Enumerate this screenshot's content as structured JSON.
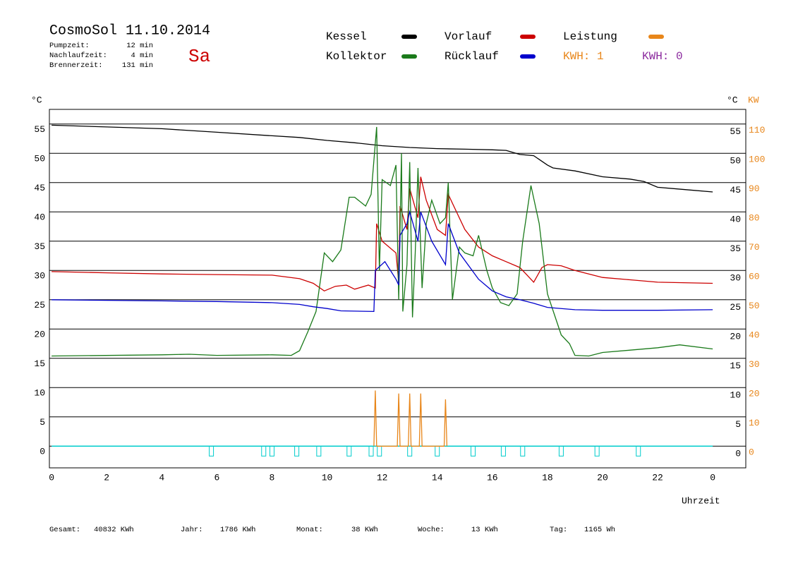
{
  "header": {
    "title": "CosmoSol 11.10.2014",
    "weekday": "Sa",
    "stats": [
      {
        "label": "Pumpzeit:",
        "value": "12 min"
      },
      {
        "label": "Nachlaufzeit:",
        "value": "4 min"
      },
      {
        "label": "Brennerzeit:",
        "value": "131 min"
      }
    ],
    "kwh": [
      {
        "text": "KWH: 1",
        "color": "#e8861a"
      },
      {
        "text": "KWH: 0",
        "color": "#8b2a9e"
      }
    ]
  },
  "footer": [
    {
      "label": "Gesamt:",
      "value": "40832 KWh"
    },
    {
      "label": "Jahr:",
      "value": "1786 KWh"
    },
    {
      "label": "Monat:",
      "value": "38 KWh"
    },
    {
      "label": "Woche:",
      "value": "13 KWh"
    },
    {
      "label": "Tag:",
      "value": "1165 Wh"
    }
  ],
  "chart_data": {
    "type": "line",
    "y_label": "°C",
    "y2_label": "°C",
    "y2_unit": "KW",
    "x_label": "Uhrzeit",
    "xlim": [
      -0.08,
      25.2
    ],
    "xticks": [
      0,
      2,
      4,
      6,
      8,
      10,
      12,
      14,
      16,
      18,
      20,
      22,
      {
        "value": 24,
        "label": "0"
      }
    ],
    "ylim": [
      -3.7,
      57.5
    ],
    "yticks": [
      0,
      5,
      10,
      15,
      20,
      25,
      30,
      35,
      40,
      45,
      50,
      55
    ],
    "y2lim": [
      -7.4,
      115
    ],
    "y2ticks": [
      0,
      10,
      20,
      30,
      40,
      50,
      60,
      70,
      80,
      90,
      100,
      110
    ],
    "grid": true,
    "series": [
      {
        "name": "Kessel",
        "color": "#000000",
        "x": [
          0,
          2,
          4,
          6,
          8,
          9,
          10,
          11,
          12,
          13,
          14,
          15,
          16,
          16.5,
          17,
          17.5,
          18,
          18.2,
          19,
          20,
          21,
          21.5,
          22,
          23,
          24
        ],
        "values": [
          54.8,
          54.5,
          54.2,
          53.6,
          53.0,
          52.7,
          52.2,
          51.8,
          51.3,
          51.0,
          50.8,
          50.7,
          50.6,
          50.5,
          49.8,
          49.6,
          48,
          47.5,
          47,
          46,
          45.6,
          45.2,
          44.2,
          43.8,
          43.4
        ]
      },
      {
        "name": "Vorlauf",
        "color": "#cc0000",
        "x": [
          0,
          2,
          4,
          6,
          8,
          9,
          9.5,
          9.9,
          10.3,
          10.7,
          11,
          11.5,
          11.75,
          11.8,
          12,
          12.5,
          12.6,
          12.65,
          12.9,
          13.0,
          13.3,
          13.4,
          13.6,
          14,
          14.3,
          14.4,
          14.6,
          15,
          15.5,
          16,
          16.5,
          17,
          17.3,
          17.5,
          17.8,
          18,
          18.5,
          19,
          20,
          21,
          22,
          24
        ],
        "values": [
          29.8,
          29.6,
          29.4,
          29.3,
          29.2,
          28.6,
          27.8,
          26.5,
          27.3,
          27.5,
          26.8,
          27.5,
          27.0,
          38,
          35,
          33,
          28,
          41,
          37,
          44,
          39,
          46,
          42,
          37,
          36,
          43,
          41,
          37,
          34,
          32.5,
          31.5,
          30.5,
          29,
          28,
          30.5,
          31,
          30.8,
          30,
          28.8,
          28.4,
          28,
          27.8
        ]
      },
      {
        "name": "Leistung",
        "color": "#e8861a",
        "axis": "y2",
        "x": [
          11.7,
          11.75,
          11.8,
          12.55,
          12.6,
          12.65,
          12.95,
          13.0,
          13.05,
          13.35,
          13.4,
          13.45,
          14.25,
          14.3,
          14.35
        ],
        "values": [
          0,
          19,
          0,
          0,
          18,
          0,
          0,
          18,
          0,
          0,
          18,
          0,
          0,
          16,
          0
        ]
      },
      {
        "name": "Kollektor",
        "color": "#1a7a1a",
        "x": [
          0,
          4,
          5,
          6,
          8,
          8.7,
          9,
          9.3,
          9.6,
          9.9,
          10.2,
          10.5,
          10.8,
          11,
          11.4,
          11.6,
          11.8,
          11.9,
          12.0,
          12.3,
          12.5,
          12.6,
          12.7,
          12.75,
          12.9,
          13.0,
          13.1,
          13.2,
          13.3,
          13.45,
          13.6,
          13.8,
          14.1,
          14.3,
          14.4,
          14.55,
          14.8,
          15,
          15.3,
          15.5,
          15.8,
          16,
          16.3,
          16.6,
          16.9,
          17.1,
          17.4,
          17.7,
          18,
          18.5,
          18.8,
          19,
          19.5,
          20,
          21,
          22,
          22.8,
          24
        ],
        "values": [
          15.4,
          15.6,
          15.7,
          15.5,
          15.6,
          15.5,
          16.3,
          19.5,
          23,
          33,
          31.5,
          33.5,
          42.5,
          42.5,
          41,
          43,
          54.5,
          30,
          45.5,
          44.5,
          48,
          25,
          50,
          23,
          31,
          48.5,
          22,
          33,
          47.5,
          27,
          38,
          42,
          38,
          39,
          45,
          25,
          34,
          33,
          32.5,
          36,
          30,
          27,
          24.5,
          24,
          26,
          35,
          44.5,
          38,
          26,
          19,
          17.5,
          15.5,
          15.4,
          16,
          16.4,
          16.8,
          17.3,
          16.6
        ]
      },
      {
        "name": "Rücklauf",
        "color": "#0000cc",
        "x": [
          0,
          4,
          6,
          8,
          9,
          9.5,
          10,
          10.5,
          11.7,
          11.75,
          12.1,
          12.5,
          12.6,
          12.65,
          12.9,
          13.0,
          13.3,
          13.4,
          13.8,
          14.3,
          14.4,
          14.8,
          15.5,
          16,
          16.5,
          17,
          17.5,
          18,
          19,
          20,
          22,
          24
        ],
        "values": [
          25,
          24.8,
          24.7,
          24.5,
          24.2,
          23.8,
          23.5,
          23.1,
          23,
          30,
          31.5,
          28.5,
          27.5,
          36,
          38,
          40,
          35,
          40,
          35,
          31,
          38,
          33,
          28.5,
          26.5,
          25.5,
          25,
          24.4,
          23.7,
          23.3,
          23.2,
          23.2,
          23.3
        ]
      }
    ],
    "pump": {
      "color": "#00cccc",
      "x": [
        5.8,
        7.7,
        8.0,
        8.9,
        9.7,
        10.8,
        11.6,
        11.9,
        13.0,
        14.0,
        15.3,
        16.4,
        17.1,
        18.5,
        19.8,
        21.3
      ]
    }
  }
}
